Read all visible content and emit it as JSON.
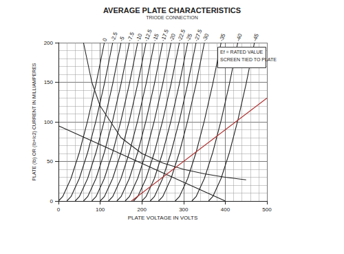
{
  "chart_data": {
    "type": "line",
    "title": "AVERAGE PLATE CHARACTERISTICS",
    "subtitle": "TRIODE CONNECTION",
    "x_label": "PLATE VOLTAGE IN VOLTS",
    "y_label": "PLATE (Ib) OR (Ib+Ic2) CURRENT IN MILLIAMPERES",
    "xlim": [
      0,
      500
    ],
    "xticks": [
      0,
      100,
      200,
      300,
      400,
      500
    ],
    "ylim": [
      0,
      200
    ],
    "yticks": [
      0,
      50,
      100,
      150,
      200
    ],
    "grid": true,
    "annotations": [
      "Ef = RATED VALUE",
      "SCREEN TIED TO PLATE"
    ],
    "series": [
      {
        "name": "0",
        "color": "#222222",
        "x": [
          0,
          10,
          30,
          50,
          70,
          90,
          110
        ],
        "values": [
          0,
          5.5,
          28.5,
          61.3,
          101.6,
          148,
          200
        ]
      },
      {
        "name": "-2.5",
        "color": "#222222",
        "x": [
          20,
          30,
          50,
          70,
          90,
          110,
          130
        ],
        "values": [
          0,
          5.5,
          28.5,
          61.3,
          101.6,
          148,
          200
        ]
      },
      {
        "name": "-5",
        "color": "#222222",
        "x": [
          40,
          50,
          70,
          90,
          110,
          130,
          150
        ],
        "values": [
          0,
          5.5,
          28.5,
          61.3,
          101.6,
          148,
          200
        ]
      },
      {
        "name": "-7.5",
        "color": "#222222",
        "x": [
          60,
          70,
          90,
          110,
          130,
          150,
          170
        ],
        "values": [
          0,
          5.5,
          28.5,
          61.3,
          101.6,
          148,
          200
        ]
      },
      {
        "name": "-10",
        "color": "#222222",
        "x": [
          80,
          90,
          110,
          130,
          150,
          170,
          190
        ],
        "values": [
          0,
          5.5,
          28.5,
          61.3,
          101.6,
          148,
          200
        ]
      },
      {
        "name": "-12.5",
        "color": "#222222",
        "x": [
          100,
          110,
          130,
          150,
          170,
          190,
          210
        ],
        "values": [
          0,
          5.5,
          28.5,
          61.3,
          101.6,
          148,
          200
        ]
      },
      {
        "name": "-15",
        "color": "#222222",
        "x": [
          120,
          130,
          150,
          170,
          190,
          210,
          230
        ],
        "values": [
          0,
          5.5,
          28.5,
          61.3,
          101.6,
          148,
          200
        ]
      },
      {
        "name": "-17.5",
        "color": "#222222",
        "x": [
          140,
          150,
          170,
          190,
          210,
          230,
          250
        ],
        "values": [
          0,
          5.5,
          28.5,
          61.3,
          101.6,
          148,
          200
        ]
      },
      {
        "name": "-20",
        "color": "#222222",
        "x": [
          160,
          170,
          190,
          210,
          230,
          250,
          270
        ],
        "values": [
          0,
          5.5,
          28.5,
          61.3,
          101.6,
          148,
          200
        ]
      },
      {
        "name": "-22.5",
        "color": "#222222",
        "x": [
          180,
          190,
          210,
          230,
          250,
          270,
          290
        ],
        "values": [
          0,
          5.5,
          28.5,
          61.3,
          101.6,
          148,
          200
        ]
      },
      {
        "name": "-25",
        "color": "#222222",
        "x": [
          200,
          210,
          230,
          250,
          270,
          290,
          310
        ],
        "values": [
          0,
          5.5,
          28.5,
          61.3,
          101.6,
          148,
          200
        ]
      },
      {
        "name": "-27.5",
        "color": "#222222",
        "x": [
          220,
          230,
          250,
          270,
          290,
          310,
          330
        ],
        "values": [
          0,
          5.5,
          28.5,
          61.3,
          101.6,
          148,
          200
        ]
      },
      {
        "name": "-30",
        "color": "#222222",
        "x": [
          240,
          250,
          270,
          290,
          310,
          330,
          350
        ],
        "values": [
          0,
          5.5,
          28.5,
          61.3,
          101.6,
          148,
          200
        ]
      },
      {
        "name": "-35",
        "color": "#222222",
        "x": [
          280,
          290,
          310,
          330,
          350,
          370,
          390
        ],
        "values": [
          0,
          5.5,
          28.5,
          61.3,
          101.6,
          148,
          200
        ]
      },
      {
        "name": "-40",
        "color": "#222222",
        "x": [
          320,
          330,
          350,
          370,
          390,
          410,
          430
        ],
        "values": [
          0,
          5.5,
          28.5,
          61.3,
          101.6,
          148,
          200
        ]
      },
      {
        "name": "-45",
        "color": "#222222",
        "x": [
          360,
          370,
          390,
          410,
          430,
          450,
          470
        ],
        "values": [
          0,
          5.5,
          28.5,
          61.3,
          101.6,
          148,
          200
        ]
      },
      {
        "color": "#222222",
        "x": [
          60,
          80,
          100,
          150,
          200,
          250,
          300,
          350,
          400,
          450
        ],
        "values": [
          200,
          150,
          120,
          80,
          60,
          48,
          40,
          34.3,
          30,
          26.7
        ]
      },
      {
        "color": "#222222",
        "x": [
          0,
          400
        ],
        "values": [
          95,
          0
        ]
      },
      {
        "color": "#b03030",
        "x": [
          175,
          500
        ],
        "values": [
          0,
          130
        ]
      }
    ]
  }
}
